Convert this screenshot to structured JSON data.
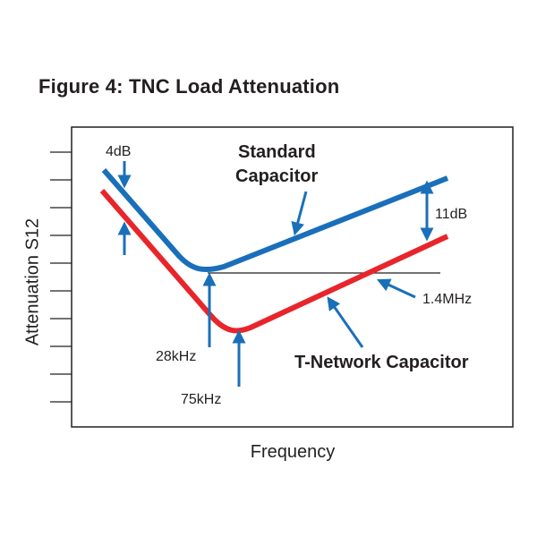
{
  "title": "Figure 4: TNC Load Attenuation",
  "chart_data": {
    "type": "line",
    "xlabel": "Frequency",
    "ylabel": "Attenuation S12",
    "ticks": 10,
    "colors": {
      "standard": "#1a6fba",
      "tnetwork": "#e8252b",
      "arrow": "#1a6fba",
      "frame": "#231f20"
    },
    "series": [
      {
        "name": "Standard Capacitor",
        "color": "#1a6fba"
      },
      {
        "name": "T-Network Capacitor",
        "color": "#e8252b"
      }
    ],
    "annotations": {
      "offset_db": "4dB",
      "end_gap_db": "11dB",
      "standard_min_freq": "28kHz",
      "tnetwork_min_freq": "75kHz",
      "crossover_freq": "1.4MHz"
    }
  }
}
